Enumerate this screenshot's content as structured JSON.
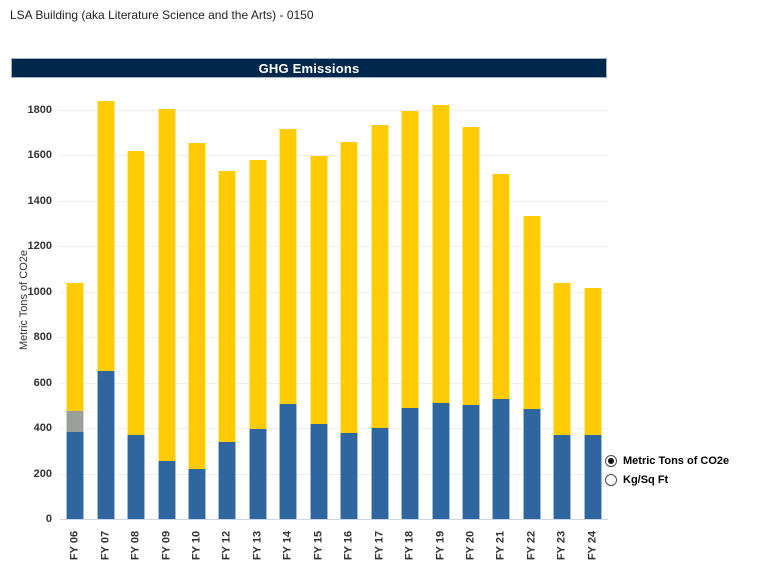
{
  "page": {
    "building_title": "LSA Building (aka Literature Science and the Arts) - 0150"
  },
  "header": {
    "title": "GHG Emissions",
    "bg_color": "#00274C"
  },
  "legend": {
    "options": [
      {
        "label": "Metric Tons of CO2e",
        "selected": true
      },
      {
        "label": "Kg/Sq Ft",
        "selected": false
      }
    ]
  },
  "chart_data": {
    "type": "bar",
    "stacked": true,
    "title": "GHG Emissions",
    "xlabel": "",
    "ylabel": "Metric Tons of CO2e",
    "ylim": [
      0,
      1800
    ],
    "ytick_interval": 200,
    "grid": true,
    "legend_position": "right",
    "categories": [
      "FY 06",
      "FY 07",
      "FY 08",
      "FY 09",
      "FY 10",
      "FY 12",
      "FY 13",
      "FY 14",
      "FY 15",
      "FY 16",
      "FY 17",
      "FY 18",
      "FY 19",
      "FY 20",
      "FY 21",
      "FY 22",
      "FY 23",
      "FY 24"
    ],
    "series": [
      {
        "name": "blue-segment",
        "color": "#3066A0",
        "values": [
          385,
          650,
          370,
          255,
          220,
          340,
          395,
          505,
          420,
          378,
          400,
          490,
          510,
          500,
          530,
          485,
          372,
          370
        ]
      },
      {
        "name": "gray-segment",
        "color": "#99A09A",
        "values": [
          90,
          0,
          0,
          0,
          0,
          0,
          0,
          0,
          0,
          0,
          0,
          0,
          0,
          0,
          0,
          0,
          0,
          0
        ]
      },
      {
        "name": "yellow-segment",
        "color": "#FFCB05",
        "values": [
          565,
          1190,
          1250,
          1550,
          1435,
          1190,
          1185,
          1210,
          1180,
          1282,
          1335,
          1305,
          1310,
          1225,
          990,
          850,
          668,
          645
        ]
      }
    ],
    "totals": [
      1040,
      1840,
      1620,
      1805,
      1655,
      1530,
      1580,
      1715,
      1600,
      1660,
      1735,
      1795,
      1820,
      1725,
      1520,
      1335,
      1040,
      1015
    ]
  },
  "colors": {
    "header_navy": "#00274C",
    "bar_blue": "#3066A0",
    "bar_gray": "#99A09A",
    "bar_yellow": "#FFCB05",
    "gridline": "#EDEDED"
  }
}
